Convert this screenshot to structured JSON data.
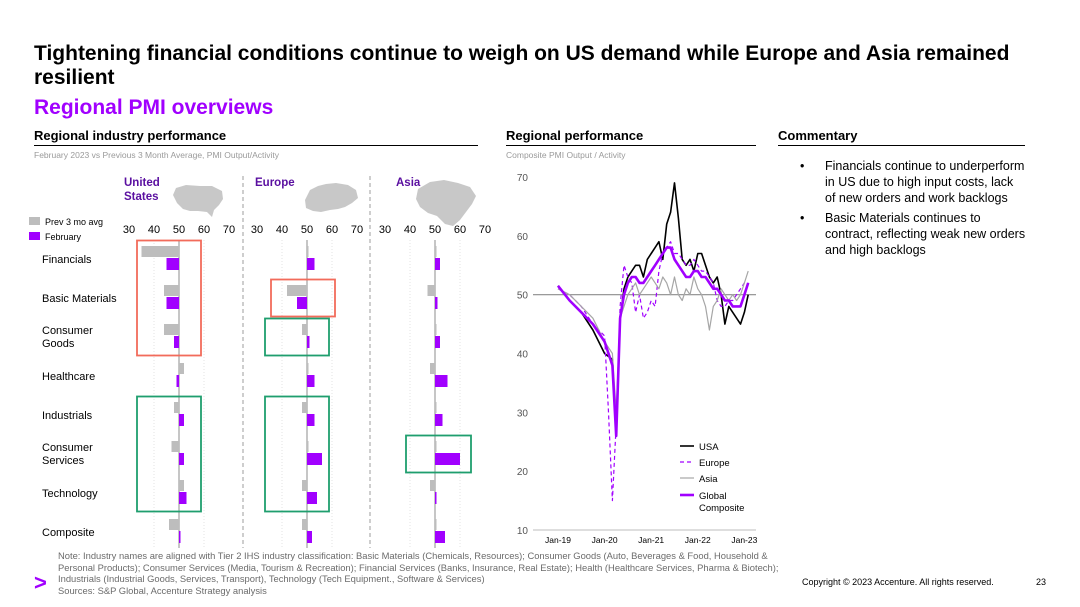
{
  "header": {
    "title": "Tightening financial conditions continue to weigh on US demand while Europe and Asia remained resilient",
    "subtitle": "Regional PMI overviews"
  },
  "left_section": {
    "heading": "Regional industry performance",
    "subheading": "February 2023 vs Previous 3 Month Average, PMI Output/Activity"
  },
  "middle_section": {
    "heading": "Regional performance",
    "subheading": "Composite PMI Output / Activity"
  },
  "right_section": {
    "heading": "Commentary",
    "bullets": [
      "Financials continue to underperform in US due to high input costs, lack of new orders and work backlogs",
      "Basic Materials continues to contract, reflecting weak new orders and high backlogs"
    ]
  },
  "footer": {
    "note": "Note: Industry names are aligned with Tier 2 IHS industry classification: Basic Materials (Chemicals, Resources); Consumer Goods (Auto, Beverages & Food, Household & Personal Products); Consumer Services (Media, Tourism & Recreation); Financial Services (Banks, Insurance, Real Estate); Health (Healthcare Services, Pharma & Biotech); Industrials (Industrial Goods, Services, Transport), Technology (Tech Equipment., Software & Services)",
    "sources": "Sources: S&P Global, Accenture Strategy analysis",
    "copyright": "Copyright © 2023 Accenture. All rights reserved.",
    "page_number": "23",
    "logo_glyph": ">"
  },
  "colors": {
    "accent": "#a100ff",
    "prev_avg": "#bdbdbd",
    "highlight_red": "#f26b5b",
    "highlight_green": "#1f9e6e",
    "usa_line": "#000000",
    "asia_line": "#a6a6a6"
  },
  "chart_data": [
    {
      "type": "bar",
      "orientation": "horizontal",
      "legend": [
        "Prev 3 mo avg",
        "February"
      ],
      "baseline": 50,
      "axis_ticks": [
        "30",
        "40",
        "50",
        "60",
        "70"
      ],
      "xlim": [
        30,
        70
      ],
      "categories": [
        "Financials",
        "Basic Materials",
        "Consumer Goods",
        "Healthcare",
        "Industrials",
        "Consumer Services",
        "Technology",
        "Composite"
      ],
      "panels": [
        {
          "region": "United States",
          "region_lines": [
            "United",
            "States"
          ],
          "prev": [
            35,
            44,
            44,
            52,
            48,
            47,
            52,
            46
          ],
          "feb": [
            45,
            45,
            48,
            49,
            52,
            52,
            53,
            50
          ],
          "highlights": [
            {
              "color": "red",
              "from": 0,
              "to": 2
            },
            {
              "color": "green",
              "from": 4,
              "to": 6
            }
          ]
        },
        {
          "region": "Europe",
          "region_lines": [
            "Europe"
          ],
          "prev": [
            50,
            42,
            48,
            50,
            48,
            50,
            48,
            48
          ],
          "feb": [
            53,
            46,
            51,
            53,
            53,
            56,
            54,
            52
          ],
          "highlights": [
            {
              "color": "red",
              "from": 1,
              "to": 1
            },
            {
              "color": "green",
              "from": 2,
              "to": 2
            },
            {
              "color": "green",
              "from": 4,
              "to": 6
            }
          ]
        },
        {
          "region": "Asia",
          "region_lines": [
            "Asia"
          ],
          "prev": [
            50,
            47,
            50,
            48,
            50,
            50,
            48,
            50
          ],
          "feb": [
            52,
            51,
            52,
            55,
            53,
            60,
            50,
            54
          ],
          "highlights": [
            {
              "color": "green",
              "from": 5,
              "to": 5
            }
          ]
        }
      ]
    },
    {
      "type": "line",
      "ylim": [
        10,
        70
      ],
      "yticks": [
        "10",
        "20",
        "30",
        "40",
        "50",
        "60",
        "70"
      ],
      "xlim": [
        0,
        51
      ],
      "xtick_positions": [
        0,
        12,
        24,
        36,
        48
      ],
      "xticks": [
        "Jan-19",
        "Jan-20",
        "Jan-21",
        "Jan-22",
        "Jan-23"
      ],
      "reference_line": 50,
      "series": [
        {
          "name": "USA",
          "color": "#000000",
          "dash": "",
          "width": 1.6,
          "points": [
            [
              0,
              51.5
            ],
            [
              3,
              49
            ],
            [
              6,
              47
            ],
            [
              9,
              44
            ],
            [
              12,
              40
            ],
            [
              14,
              39
            ],
            [
              15,
              27
            ],
            [
              16,
              46
            ],
            [
              17,
              51
            ],
            [
              18,
              53
            ],
            [
              19,
              54
            ],
            [
              20,
              55
            ],
            [
              21,
              55
            ],
            [
              22,
              53
            ],
            [
              23,
              56
            ],
            [
              24,
              57
            ],
            [
              25,
              58
            ],
            [
              26,
              59
            ],
            [
              27,
              56
            ],
            [
              28,
              62
            ],
            [
              29,
              64
            ],
            [
              30,
              69
            ],
            [
              31,
              63
            ],
            [
              32,
              56
            ],
            [
              33,
              55
            ],
            [
              34,
              56
            ],
            [
              35,
              54
            ],
            [
              36,
              57
            ],
            [
              37,
              57
            ],
            [
              38,
              55
            ],
            [
              39,
              53
            ],
            [
              40,
              52
            ],
            [
              41,
              53
            ],
            [
              42,
              50
            ],
            [
              43,
              45
            ],
            [
              44,
              48
            ],
            [
              45,
              47
            ],
            [
              46,
              46
            ],
            [
              47,
              45
            ],
            [
              48,
              47
            ],
            [
              49,
              50
            ]
          ]
        },
        {
          "name": "Europe",
          "color": "#a100ff",
          "dash": "4 3",
          "width": 1.2,
          "points": [
            [
              0,
              51
            ],
            [
              3,
              50
            ],
            [
              6,
              48
            ],
            [
              9,
              45
            ],
            [
              12,
              43
            ],
            [
              13,
              30
            ],
            [
              14,
              15
            ],
            [
              15,
              28
            ],
            [
              16,
              48
            ],
            [
              17,
              55
            ],
            [
              18,
              53
            ],
            [
              19,
              52
            ],
            [
              20,
              47
            ],
            [
              21,
              50
            ],
            [
              22,
              46
            ],
            [
              23,
              47
            ],
            [
              24,
              49
            ],
            [
              25,
              48
            ],
            [
              26,
              54
            ],
            [
              27,
              57
            ],
            [
              28,
              58
            ],
            [
              29,
              59
            ],
            [
              30,
              57
            ],
            [
              31,
              57
            ],
            [
              32,
              56
            ],
            [
              33,
              55
            ],
            [
              34,
              55
            ],
            [
              35,
              56
            ],
            [
              36,
              55
            ],
            [
              37,
              54
            ],
            [
              38,
              54
            ],
            [
              39,
              53
            ],
            [
              40,
              52
            ],
            [
              41,
              49
            ],
            [
              42,
              48
            ],
            [
              43,
              48
            ],
            [
              44,
              49
            ],
            [
              45,
              49
            ],
            [
              46,
              50
            ],
            [
              47,
              51
            ],
            [
              48,
              52
            ],
            [
              49,
              52
            ]
          ]
        },
        {
          "name": "Asia",
          "color": "#a6a6a6",
          "dash": "",
          "width": 1.2,
          "points": [
            [
              0,
              51
            ],
            [
              3,
              50
            ],
            [
              6,
              48
            ],
            [
              9,
              46
            ],
            [
              12,
              42
            ],
            [
              14,
              40
            ],
            [
              15,
              30
            ],
            [
              16,
              46
            ],
            [
              17,
              48
            ],
            [
              18,
              50
            ],
            [
              19,
              51
            ],
            [
              20,
              52
            ],
            [
              21,
              50
            ],
            [
              22,
              51
            ],
            [
              23,
              52
            ],
            [
              24,
              53
            ],
            [
              25,
              52
            ],
            [
              26,
              51
            ],
            [
              27,
              53
            ],
            [
              28,
              52
            ],
            [
              29,
              50
            ],
            [
              30,
              53
            ],
            [
              31,
              50
            ],
            [
              32,
              49
            ],
            [
              33,
              51
            ],
            [
              34,
              50
            ],
            [
              35,
              53
            ],
            [
              36,
              51
            ],
            [
              37,
              50
            ],
            [
              38,
              48
            ],
            [
              39,
              44
            ],
            [
              40,
              48
            ],
            [
              41,
              49
            ],
            [
              42,
              51
            ],
            [
              43,
              50
            ],
            [
              44,
              49
            ],
            [
              45,
              50
            ],
            [
              46,
              49
            ],
            [
              47,
              50
            ],
            [
              48,
              52
            ],
            [
              49,
              54
            ]
          ]
        },
        {
          "name": "Global Composite",
          "name_lines": [
            "Global",
            "Composite"
          ],
          "color": "#a100ff",
          "dash": "",
          "width": 2.6,
          "points": [
            [
              0,
              51.5
            ],
            [
              3,
              49
            ],
            [
              6,
              47
            ],
            [
              9,
              45
            ],
            [
              12,
              42
            ],
            [
              14,
              38
            ],
            [
              15,
              26
            ],
            [
              16,
              46
            ],
            [
              17,
              50
            ],
            [
              18,
              52
            ],
            [
              19,
              53
            ],
            [
              20,
              53
            ],
            [
              21,
              52
            ],
            [
              22,
              52
            ],
            [
              23,
              53
            ],
            [
              24,
              54
            ],
            [
              25,
              55
            ],
            [
              26,
              56
            ],
            [
              27,
              57
            ],
            [
              28,
              58
            ],
            [
              29,
              58
            ],
            [
              30,
              56
            ],
            [
              31,
              55
            ],
            [
              32,
              54
            ],
            [
              33,
              53
            ],
            [
              34,
              53
            ],
            [
              35,
              54
            ],
            [
              36,
              54
            ],
            [
              37,
              53
            ],
            [
              38,
              53
            ],
            [
              39,
              52
            ],
            [
              40,
              51
            ],
            [
              41,
              51
            ],
            [
              42,
              50
            ],
            [
              43,
              49
            ],
            [
              44,
              49
            ],
            [
              45,
              48
            ],
            [
              46,
              48
            ],
            [
              47,
              48
            ],
            [
              48,
              50
            ],
            [
              49,
              52
            ]
          ]
        }
      ]
    }
  ]
}
